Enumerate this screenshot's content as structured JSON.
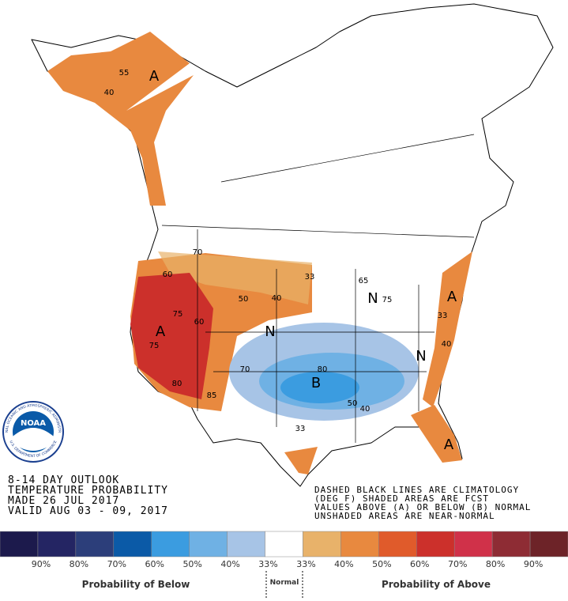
{
  "header": {
    "lines": [
      "8-14 DAY OUTLOOK",
      "TEMPERATURE PROBABILITY",
      "MADE 26 JUL 2017",
      "VALID AUG 03 - 09, 2017"
    ]
  },
  "note": {
    "lines": [
      "DASHED BLACK LINES ARE CLIMATOLOGY",
      "(DEG F) SHADED AREAS ARE FCST",
      "VALUES ABOVE (A) OR BELOW (B) NORMAL",
      "UNSHADED AREAS ARE NEAR-NORMAL"
    ]
  },
  "logo": {
    "name": "NOAA",
    "ring_top": "NATIONAL OCEANIC AND ATMOSPHERIC ADMINISTRATION",
    "ring_bottom": "U.S. DEPARTMENT OF COMMERCE"
  },
  "map": {
    "labels": [
      "A",
      "A",
      "B",
      "N",
      "N",
      "N",
      "A",
      "A",
      "55",
      "40",
      "70",
      "60",
      "50",
      "40",
      "33",
      "75",
      "75",
      "60",
      "80",
      "85",
      "65",
      "75",
      "33",
      "40",
      "70",
      "80",
      "50",
      "40",
      "33"
    ]
  },
  "legend": {
    "colors": [
      "#1c1a4c",
      "#242563",
      "#2c3e7a",
      "#0b5aa7",
      "#3b9ce0",
      "#6fb1e4",
      "#a7c4e6",
      "#ffffff",
      "#e8b26a",
      "#e8893f",
      "#e05b2b",
      "#cc302b",
      "#d03149",
      "#8e2c34",
      "#6d2328"
    ],
    "labels": [
      "90%",
      "80%",
      "70%",
      "60%",
      "50%",
      "40%",
      "33%",
      "33%",
      "40%",
      "50%",
      "60%",
      "70%",
      "80%",
      "90%"
    ],
    "below_title": "Probability of Below",
    "normal_title": "Normal",
    "above_title": "Probability of Above"
  }
}
